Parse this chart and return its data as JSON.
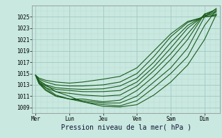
{
  "background_color": "#c8e8e0",
  "grid_major_color": "#a0c8c0",
  "grid_minor_color": "#b8d8d0",
  "line_color": "#1a5c1a",
  "xlabel": "Pression niveau de la mer( hPa )",
  "ylim": [
    1008.5,
    1027.0
  ],
  "yticks": [
    1009,
    1011,
    1013,
    1015,
    1017,
    1019,
    1021,
    1023,
    1025
  ],
  "day_labels": [
    "Mer",
    "Lun",
    "Jeu",
    "Ven",
    "Sam",
    "Dim"
  ],
  "day_positions": [
    0,
    1,
    2,
    3,
    4,
    5
  ],
  "tick_fontsize": 5.5,
  "xlabel_fontsize": 7.0,
  "lines": [
    {
      "x": [
        0.0,
        0.1,
        0.3,
        0.6,
        1.0,
        1.4,
        2.0,
        2.5,
        3.0,
        3.5,
        4.0,
        4.5,
        5.0,
        5.35
      ],
      "y": [
        1014.7,
        1013.8,
        1013.0,
        1011.8,
        1011.0,
        1010.0,
        1009.2,
        1009.1,
        1009.5,
        1011.2,
        1013.5,
        1016.5,
        1021.0,
        1025.5
      ]
    },
    {
      "x": [
        0.0,
        0.1,
        0.3,
        0.6,
        1.0,
        1.4,
        2.0,
        2.5,
        3.0,
        3.5,
        4.0,
        4.5,
        5.0,
        5.35
      ],
      "y": [
        1014.7,
        1013.5,
        1012.5,
        1011.2,
        1010.5,
        1010.0,
        1009.5,
        1009.3,
        1010.2,
        1012.5,
        1015.0,
        1018.0,
        1023.5,
        1026.2
      ]
    },
    {
      "x": [
        0.0,
        0.1,
        0.3,
        0.6,
        1.0,
        1.4,
        2.0,
        2.5,
        3.0,
        3.5,
        4.0,
        4.5,
        5.0,
        5.35
      ],
      "y": [
        1014.7,
        1013.3,
        1012.2,
        1011.0,
        1010.5,
        1010.2,
        1009.8,
        1009.8,
        1011.0,
        1013.5,
        1016.0,
        1019.5,
        1025.0,
        1026.5
      ]
    },
    {
      "x": [
        0.0,
        0.1,
        0.3,
        0.6,
        1.0,
        1.4,
        2.0,
        2.5,
        3.0,
        3.5,
        4.0,
        4.5,
        5.0,
        5.35
      ],
      "y": [
        1014.7,
        1013.2,
        1012.0,
        1011.0,
        1010.5,
        1010.5,
        1010.0,
        1010.3,
        1012.0,
        1014.5,
        1017.5,
        1021.0,
        1025.5,
        1026.3
      ]
    },
    {
      "x": [
        0.0,
        0.1,
        0.3,
        0.6,
        1.0,
        1.4,
        2.0,
        2.5,
        3.0,
        3.5,
        4.0,
        4.5,
        5.0,
        5.35
      ],
      "y": [
        1014.7,
        1013.3,
        1012.5,
        1011.8,
        1011.5,
        1011.2,
        1011.0,
        1011.2,
        1012.8,
        1015.5,
        1018.5,
        1022.0,
        1025.5,
        1026.0
      ]
    },
    {
      "x": [
        0.0,
        0.1,
        0.3,
        0.6,
        1.0,
        1.4,
        2.0,
        2.5,
        3.0,
        3.5,
        4.0,
        4.5,
        5.0,
        5.35
      ],
      "y": [
        1014.7,
        1013.5,
        1012.8,
        1012.2,
        1012.0,
        1011.8,
        1011.8,
        1012.0,
        1013.5,
        1016.2,
        1019.5,
        1023.0,
        1025.3,
        1025.8
      ]
    },
    {
      "x": [
        0.0,
        0.1,
        0.3,
        0.6,
        1.0,
        1.4,
        2.0,
        2.5,
        3.0,
        3.5,
        4.0,
        4.5,
        5.0,
        5.35
      ],
      "y": [
        1014.7,
        1013.7,
        1013.0,
        1012.5,
        1012.3,
        1012.2,
        1012.3,
        1012.8,
        1014.2,
        1017.0,
        1020.5,
        1023.5,
        1025.2,
        1025.5
      ]
    },
    {
      "x": [
        0.0,
        0.1,
        0.3,
        0.6,
        1.0,
        1.4,
        2.0,
        2.5,
        3.0,
        3.5,
        4.0,
        4.5,
        5.0,
        5.35
      ],
      "y": [
        1014.7,
        1014.0,
        1013.5,
        1013.0,
        1012.8,
        1012.8,
        1013.0,
        1013.5,
        1015.0,
        1018.0,
        1021.5,
        1024.0,
        1025.0,
        1025.3
      ]
    },
    {
      "x": [
        0.0,
        0.1,
        0.3,
        0.6,
        1.0,
        1.4,
        2.0,
        2.5,
        3.0,
        3.5,
        4.0,
        4.5,
        5.0,
        5.35
      ],
      "y": [
        1014.7,
        1014.2,
        1013.8,
        1013.5,
        1013.3,
        1013.5,
        1014.0,
        1014.5,
        1016.0,
        1019.0,
        1022.0,
        1024.2,
        1025.0,
        1025.2
      ]
    }
  ]
}
